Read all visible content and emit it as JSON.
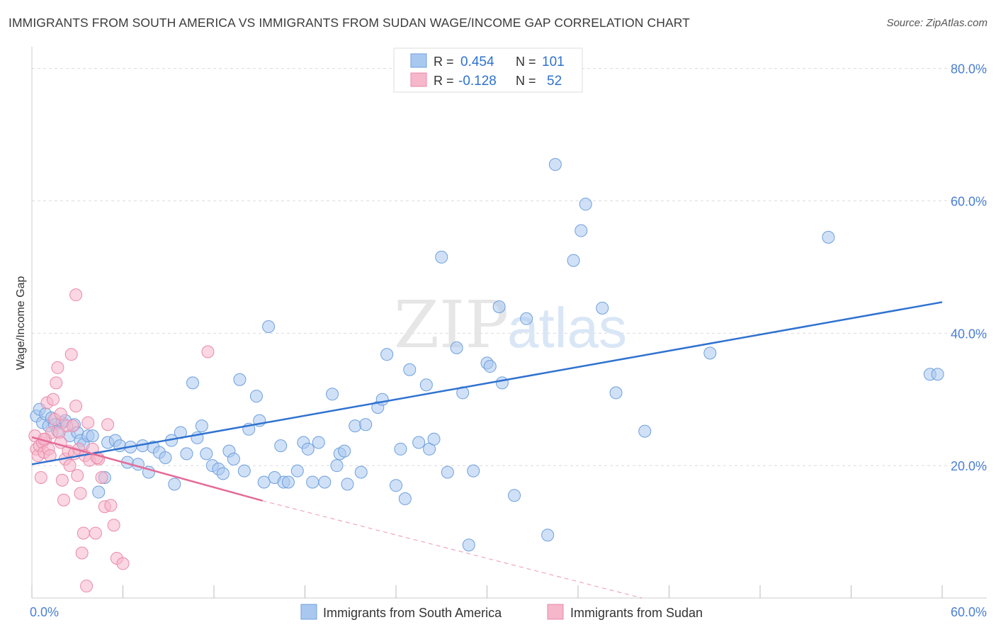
{
  "header": {
    "title": "IMMIGRANTS FROM SOUTH AMERICA VS IMMIGRANTS FROM SUDAN WAGE/INCOME GAP CORRELATION CHART",
    "source": "Source: ZipAtlas.com"
  },
  "watermark": {
    "text_zip": "ZIP",
    "text_atlas": "atlas"
  },
  "chart_data": {
    "type": "scatter",
    "title": "IMMIGRANTS FROM SOUTH AMERICA VS IMMIGRANTS FROM SUDAN WAGE/INCOME GAP CORRELATION CHART",
    "ylabel": "Wage/Income Gap",
    "xlabel": "",
    "xlim": [
      0,
      60
    ],
    "ylim": [
      0,
      82
    ],
    "x_tick_labels": [
      "0.0%",
      "60.0%"
    ],
    "y_ticks": [
      20,
      40,
      60,
      80
    ],
    "y_tick_labels": [
      "20.0%",
      "40.0%",
      "60.0%",
      "80.0%"
    ],
    "grid": true,
    "legend_position": "top-center",
    "colors": {
      "south_america_fill": "#a9c8f0",
      "south_america_line": "#2f72d0",
      "sudan_fill": "#f6b7ca",
      "sudan_line": "#e46b98"
    },
    "stats": [
      {
        "r_label": "R =",
        "r_value": "0.454",
        "n_label": "N =",
        "n_value": "101"
      },
      {
        "r_label": "R =",
        "r_value": "-0.128",
        "n_label": "N =",
        "n_value": "52"
      }
    ],
    "series": [
      {
        "name": "Immigrants from South America",
        "trend": {
          "x": [
            0,
            60
          ],
          "y": [
            20.2,
            44.7
          ]
        },
        "points": [
          [
            0.3,
            27.5
          ],
          [
            0.5,
            28.5
          ],
          [
            0.7,
            26.5
          ],
          [
            0.9,
            27.8
          ],
          [
            1.1,
            26.0
          ],
          [
            1.3,
            27.2
          ],
          [
            1.5,
            26.2
          ],
          [
            1.7,
            25.2
          ],
          [
            2.0,
            26.5
          ],
          [
            2.2,
            26.8
          ],
          [
            2.5,
            24.5
          ],
          [
            2.8,
            26.2
          ],
          [
            3.0,
            25.0
          ],
          [
            3.2,
            23.8
          ],
          [
            3.4,
            23.2
          ],
          [
            3.7,
            24.5
          ],
          [
            4.0,
            24.5
          ],
          [
            4.4,
            16.0
          ],
          [
            4.8,
            18.2
          ],
          [
            5.0,
            23.5
          ],
          [
            5.5,
            23.8
          ],
          [
            5.8,
            23.0
          ],
          [
            6.3,
            20.5
          ],
          [
            6.5,
            22.8
          ],
          [
            7.0,
            20.2
          ],
          [
            7.3,
            23.0
          ],
          [
            7.7,
            19.0
          ],
          [
            8.0,
            22.8
          ],
          [
            8.4,
            22.0
          ],
          [
            8.8,
            21.2
          ],
          [
            9.2,
            23.8
          ],
          [
            9.4,
            17.2
          ],
          [
            9.8,
            25.0
          ],
          [
            10.2,
            21.8
          ],
          [
            10.6,
            32.5
          ],
          [
            10.9,
            24.2
          ],
          [
            11.2,
            26.0
          ],
          [
            11.5,
            21.8
          ],
          [
            11.9,
            20.0
          ],
          [
            12.3,
            19.5
          ],
          [
            12.6,
            18.8
          ],
          [
            13.0,
            22.2
          ],
          [
            13.3,
            21.0
          ],
          [
            13.7,
            33.0
          ],
          [
            14.0,
            19.2
          ],
          [
            14.3,
            25.5
          ],
          [
            14.8,
            30.5
          ],
          [
            15.0,
            26.8
          ],
          [
            15.3,
            17.5
          ],
          [
            15.6,
            41.0
          ],
          [
            16.0,
            18.2
          ],
          [
            16.4,
            23.0
          ],
          [
            16.6,
            17.5
          ],
          [
            16.9,
            17.5
          ],
          [
            17.5,
            19.2
          ],
          [
            17.9,
            23.5
          ],
          [
            18.2,
            22.5
          ],
          [
            18.5,
            17.5
          ],
          [
            18.9,
            23.5
          ],
          [
            19.3,
            17.5
          ],
          [
            19.8,
            30.8
          ],
          [
            20.1,
            20.0
          ],
          [
            20.3,
            21.8
          ],
          [
            20.6,
            22.2
          ],
          [
            20.8,
            17.2
          ],
          [
            21.3,
            26.0
          ],
          [
            21.7,
            19.0
          ],
          [
            22.0,
            26.2
          ],
          [
            22.8,
            28.8
          ],
          [
            23.1,
            30.0
          ],
          [
            23.4,
            36.8
          ],
          [
            24.0,
            17.0
          ],
          [
            24.3,
            22.5
          ],
          [
            24.6,
            15.0
          ],
          [
            24.9,
            34.5
          ],
          [
            25.5,
            23.5
          ],
          [
            26.0,
            32.2
          ],
          [
            26.2,
            22.5
          ],
          [
            26.5,
            24.0
          ],
          [
            27.0,
            51.5
          ],
          [
            27.4,
            19.0
          ],
          [
            28.0,
            37.8
          ],
          [
            28.4,
            31.0
          ],
          [
            28.8,
            8.0
          ],
          [
            29.1,
            19.2
          ],
          [
            30.0,
            35.5
          ],
          [
            30.2,
            35.0
          ],
          [
            30.8,
            44.0
          ],
          [
            31.0,
            32.5
          ],
          [
            31.8,
            15.5
          ],
          [
            32.6,
            42.2
          ],
          [
            34.0,
            9.5
          ],
          [
            34.5,
            65.5
          ],
          [
            35.7,
            51.0
          ],
          [
            36.2,
            55.5
          ],
          [
            36.5,
            59.5
          ],
          [
            37.6,
            43.8
          ],
          [
            38.5,
            31.0
          ],
          [
            40.4,
            25.2
          ],
          [
            44.7,
            37.0
          ],
          [
            52.5,
            54.5
          ],
          [
            59.2,
            33.8
          ],
          [
            59.7,
            33.8
          ]
        ]
      },
      {
        "name": "Immigrants from Sudan",
        "trend": {
          "x": [
            0,
            15.2
          ],
          "y": [
            24.3,
            14.7
          ]
        },
        "trend_dashed": {
          "x": [
            15.2,
            40.2
          ],
          "y": [
            14.7,
            0
          ]
        },
        "points": [
          [
            0.2,
            24.5
          ],
          [
            0.3,
            22.5
          ],
          [
            0.4,
            21.5
          ],
          [
            0.5,
            23.0
          ],
          [
            0.6,
            18.2
          ],
          [
            0.7,
            23.5
          ],
          [
            0.8,
            22.0
          ],
          [
            0.9,
            24.0
          ],
          [
            1.0,
            29.5
          ],
          [
            1.1,
            22.5
          ],
          [
            1.2,
            21.5
          ],
          [
            1.3,
            25.0
          ],
          [
            1.4,
            30.0
          ],
          [
            1.5,
            27.0
          ],
          [
            1.6,
            32.5
          ],
          [
            1.7,
            34.8
          ],
          [
            1.8,
            25.0
          ],
          [
            1.9,
            27.8
          ],
          [
            2.0,
            17.8
          ],
          [
            2.1,
            14.8
          ],
          [
            2.2,
            21.0
          ],
          [
            2.3,
            26.0
          ],
          [
            2.4,
            22.2
          ],
          [
            2.5,
            20.0
          ],
          [
            2.6,
            36.8
          ],
          [
            2.7,
            26.0
          ],
          [
            2.8,
            21.8
          ],
          [
            2.9,
            29.0
          ],
          [
            3.0,
            18.5
          ],
          [
            3.1,
            22.5
          ],
          [
            3.2,
            15.8
          ],
          [
            3.3,
            6.8
          ],
          [
            3.4,
            9.8
          ],
          [
            3.5,
            21.5
          ],
          [
            3.6,
            1.8
          ],
          [
            3.8,
            20.8
          ],
          [
            4.0,
            22.5
          ],
          [
            4.2,
            9.8
          ],
          [
            4.4,
            21.0
          ],
          [
            4.6,
            18.2
          ],
          [
            4.8,
            13.8
          ],
          [
            5.0,
            26.2
          ],
          [
            5.2,
            14.0
          ],
          [
            5.4,
            11.0
          ],
          [
            5.6,
            6.0
          ],
          [
            6.0,
            5.2
          ],
          [
            2.9,
            45.8
          ],
          [
            11.6,
            37.2
          ],
          [
            0.8,
            24.0
          ],
          [
            1.9,
            23.5
          ],
          [
            3.7,
            26.5
          ],
          [
            4.3,
            21.2
          ]
        ]
      }
    ]
  }
}
